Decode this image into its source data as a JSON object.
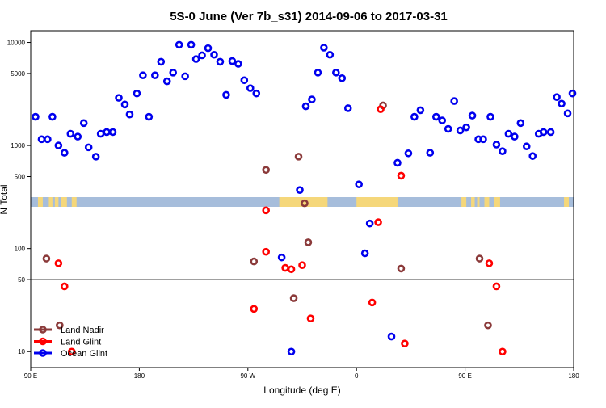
{
  "chart_data": {
    "type": "scatter",
    "title": "5S-0 June (Ver 7b_s31)   2014-09-06 to 2017-03-31",
    "xlabel": "Longitude (deg E)",
    "ylabel": "N Total",
    "yscale": "log",
    "ylim": [
      7,
      13000
    ],
    "x_ticks": [
      {
        "value": 90,
        "label": "90 E"
      },
      {
        "value": 180,
        "label": "180"
      },
      {
        "value": 270,
        "label": "90 W"
      },
      {
        "value": 360,
        "label": "0"
      },
      {
        "value": 450,
        "label": "90 E"
      },
      {
        "value": 540,
        "label": "180"
      }
    ],
    "y_ticks": [
      {
        "value": 10,
        "label": "10"
      },
      {
        "value": 50,
        "label": "50"
      },
      {
        "value": 100,
        "label": "100"
      },
      {
        "value": 500,
        "label": "500"
      },
      {
        "value": 1000,
        "label": "1000"
      },
      {
        "value": 5000,
        "label": "5000"
      },
      {
        "value": 10000,
        "label": "10000"
      }
    ],
    "reference_line_y": 50,
    "map_strip": {
      "colors": {
        "ocean": "#a6bddb",
        "land": "#f5d77a"
      }
    },
    "legend_position": "bottom-left",
    "series": [
      {
        "name": "Land Nadir",
        "color": "#8b3a3a",
        "points": [
          [
            103,
            80
          ],
          [
            114,
            18
          ],
          [
            275,
            75
          ],
          [
            285,
            580
          ],
          [
            308,
            33
          ],
          [
            312,
            780
          ],
          [
            317,
            275
          ],
          [
            320,
            115
          ],
          [
            382,
            2450
          ],
          [
            397,
            64
          ],
          [
            462,
            80
          ],
          [
            469,
            18
          ]
        ]
      },
      {
        "name": "Land Glint",
        "color": "#ff0000",
        "points": [
          [
            113,
            72
          ],
          [
            118,
            43
          ],
          [
            124,
            10
          ],
          [
            275,
            26
          ],
          [
            285,
            93
          ],
          [
            285,
            235
          ],
          [
            301,
            65
          ],
          [
            306,
            63
          ],
          [
            315,
            69
          ],
          [
            322,
            21
          ],
          [
            373,
            30
          ],
          [
            378,
            180
          ],
          [
            380,
            2250
          ],
          [
            397,
            510
          ],
          [
            400,
            12
          ],
          [
            470,
            72
          ],
          [
            476,
            43
          ],
          [
            481,
            10
          ]
        ]
      },
      {
        "name": "Ocean Glint",
        "color": "#0000ee",
        "points": [
          [
            94,
            1900
          ],
          [
            99,
            1150
          ],
          [
            104,
            1150
          ],
          [
            108,
            1900
          ],
          [
            113,
            1000
          ],
          [
            118,
            850
          ],
          [
            123,
            1300
          ],
          [
            129,
            1220
          ],
          [
            134,
            1650
          ],
          [
            138,
            960
          ],
          [
            144,
            780
          ],
          [
            148,
            1300
          ],
          [
            153,
            1350
          ],
          [
            158,
            1350
          ],
          [
            163,
            2900
          ],
          [
            168,
            2500
          ],
          [
            172,
            2000
          ],
          [
            178,
            3200
          ],
          [
            183,
            4800
          ],
          [
            188,
            1900
          ],
          [
            193,
            4800
          ],
          [
            198,
            6500
          ],
          [
            203,
            4200
          ],
          [
            208,
            5100
          ],
          [
            213,
            9500
          ],
          [
            218,
            4700
          ],
          [
            223,
            9500
          ],
          [
            227,
            6900
          ],
          [
            232,
            7500
          ],
          [
            237,
            8800
          ],
          [
            242,
            7600
          ],
          [
            247,
            6500
          ],
          [
            252,
            3100
          ],
          [
            257,
            6600
          ],
          [
            262,
            6200
          ],
          [
            267,
            4300
          ],
          [
            272,
            3600
          ],
          [
            277,
            3200
          ],
          [
            298,
            82
          ],
          [
            306,
            10
          ],
          [
            313,
            370
          ],
          [
            318,
            2400
          ],
          [
            323,
            2800
          ],
          [
            328,
            5100
          ],
          [
            333,
            8900
          ],
          [
            338,
            7600
          ],
          [
            343,
            5100
          ],
          [
            348,
            4500
          ],
          [
            353,
            2300
          ],
          [
            362,
            420
          ],
          [
            367,
            90
          ],
          [
            371,
            175
          ],
          [
            389,
            14
          ],
          [
            394,
            680
          ],
          [
            403,
            840
          ],
          [
            408,
            1900
          ],
          [
            413,
            2200
          ],
          [
            421,
            850
          ],
          [
            426,
            1900
          ],
          [
            431,
            1750
          ],
          [
            436,
            1450
          ],
          [
            441,
            2700
          ],
          [
            446,
            1400
          ],
          [
            451,
            1500
          ],
          [
            456,
            1950
          ],
          [
            461,
            1150
          ],
          [
            465,
            1150
          ],
          [
            471,
            1900
          ],
          [
            476,
            1020
          ],
          [
            481,
            880
          ],
          [
            486,
            1300
          ],
          [
            491,
            1220
          ],
          [
            496,
            1650
          ],
          [
            501,
            980
          ],
          [
            506,
            790
          ],
          [
            511,
            1300
          ],
          [
            515,
            1350
          ],
          [
            521,
            1350
          ],
          [
            526,
            2950
          ],
          [
            530,
            2550
          ],
          [
            535,
            2050
          ],
          [
            539,
            3200
          ]
        ]
      }
    ]
  }
}
